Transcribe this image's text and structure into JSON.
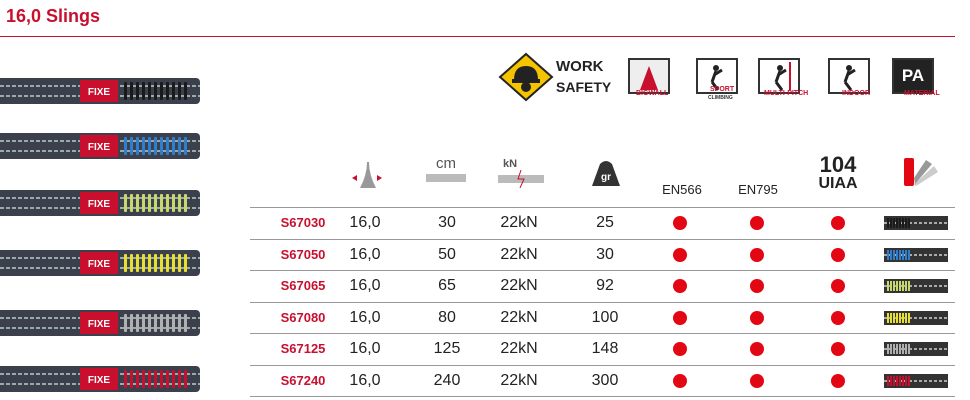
{
  "header": {
    "title": "16,0 Slings"
  },
  "usage": {
    "work": "WORK",
    "safety": "SAFETY",
    "bigwall": "BIGWALL",
    "sport": "SPORT",
    "climbing": "CLIMBING",
    "multipitch": "MULTI-PITCH",
    "indoor": "INDOOR",
    "pa": "PA",
    "material": "MATERIAL"
  },
  "columns": {
    "length_unit": "cm",
    "strength_unit": "kN",
    "weight_unit": "gr",
    "en566": "EN566",
    "en795": "EN795",
    "uiaa_number": "104",
    "uiaa": "UIAA"
  },
  "sling_label": "FIXE",
  "table": {
    "rows": [
      [
        "S67030",
        "16,0",
        "30",
        "22kN",
        "25"
      ],
      [
        "S67050",
        "16,0",
        "50",
        "22kN",
        "30"
      ],
      [
        "S67065",
        "16,0",
        "65",
        "22kN",
        "92"
      ],
      [
        "S67080",
        "16,0",
        "80",
        "22kN",
        "100"
      ],
      [
        "S67125",
        "16,0",
        "125",
        "22kN",
        "148"
      ],
      [
        "S67240",
        "16,0",
        "240",
        "22kN",
        "300"
      ]
    ],
    "stitch_colors": [
      "#1a1a1a",
      "#2f7fd0",
      "#c8d86a",
      "#e8e030",
      "#b0b0b0",
      "#c8102e"
    ]
  }
}
